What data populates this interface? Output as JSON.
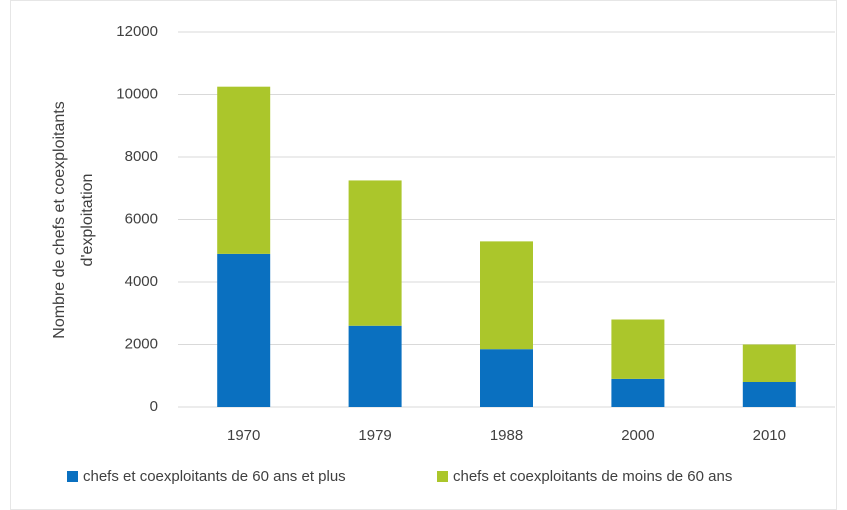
{
  "chart_data": {
    "type": "bar",
    "stacked": true,
    "ylabel": [
      "Nombre de chefs et coexploitants",
      "d'exploitation"
    ],
    "categories": [
      "1970",
      "1979",
      "1988",
      "2000",
      "2010"
    ],
    "series": [
      {
        "name": "chefs et coexploitants de 60 ans et plus",
        "color": "#0a70c0",
        "values": [
          4900,
          2600,
          1850,
          900,
          800
        ]
      },
      {
        "name": "chefs et coexploitants de moins de 60 ans",
        "color": "#abc62b",
        "values": [
          5350,
          4650,
          3450,
          1900,
          1200
        ]
      }
    ],
    "ylim": [
      0,
      12000
    ],
    "yticks": [
      0,
      2000,
      4000,
      6000,
      8000,
      10000,
      12000
    ],
    "grid": true
  }
}
